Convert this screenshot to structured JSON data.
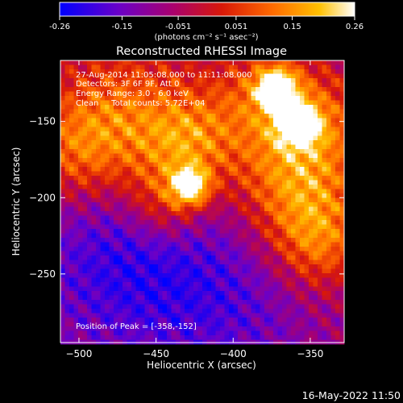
{
  "colorbar": {
    "ticks": [
      "-0.26",
      "-0.15",
      "-0.051",
      "0.051",
      "0.15",
      "0.26"
    ],
    "tick_values": [
      -0.26,
      -0.15,
      -0.051,
      0.051,
      0.15,
      0.26
    ],
    "unit_label": "(photons cm⁻² s⁻¹ asec⁻²)",
    "range": [
      -0.26,
      0.26
    ],
    "colors": [
      "#0000ff",
      "#6a00c8",
      "#a80070",
      "#d81808",
      "#ff6a00",
      "#ffc000",
      "#ffffff"
    ]
  },
  "chart_data": {
    "type": "heatmap",
    "title": "Reconstructed RHESSI Image",
    "xlabel": "Heliocentric X (arcsec)",
    "ylabel": "Heliocentric Y (arcsec)",
    "xlim": [
      -512,
      -328
    ],
    "ylim": [
      -295,
      -110
    ],
    "xticks": [
      -500,
      -450,
      -400,
      -350
    ],
    "xtick_labels": [
      "−500",
      "−450",
      "−400",
      "−350"
    ],
    "yticks": [
      -150,
      -200,
      -250
    ],
    "ytick_labels": [
      "−150",
      "−200",
      "−250"
    ],
    "info_lines": [
      "27-Aug-2014 11:05:08.000 to 11:11:08.000",
      "Detectors: 3F 6F 9F, Att 0",
      "Energy Range: 3.0 - 6.0 keV",
      "Clean     Total counts: 5.72E+04"
    ],
    "peak_label": "Position of Peak = [-358,-152]",
    "peak": {
      "x": -358,
      "y": -152
    },
    "sources": [
      {
        "x": -358,
        "y": -152,
        "intensity": 0.26
      },
      {
        "x": -372,
        "y": -128,
        "intensity": 0.24
      },
      {
        "x": -428,
        "y": -193,
        "intensity": 0.22
      }
    ]
  },
  "footer": {
    "timestamp": "16-May-2022 11:50"
  }
}
